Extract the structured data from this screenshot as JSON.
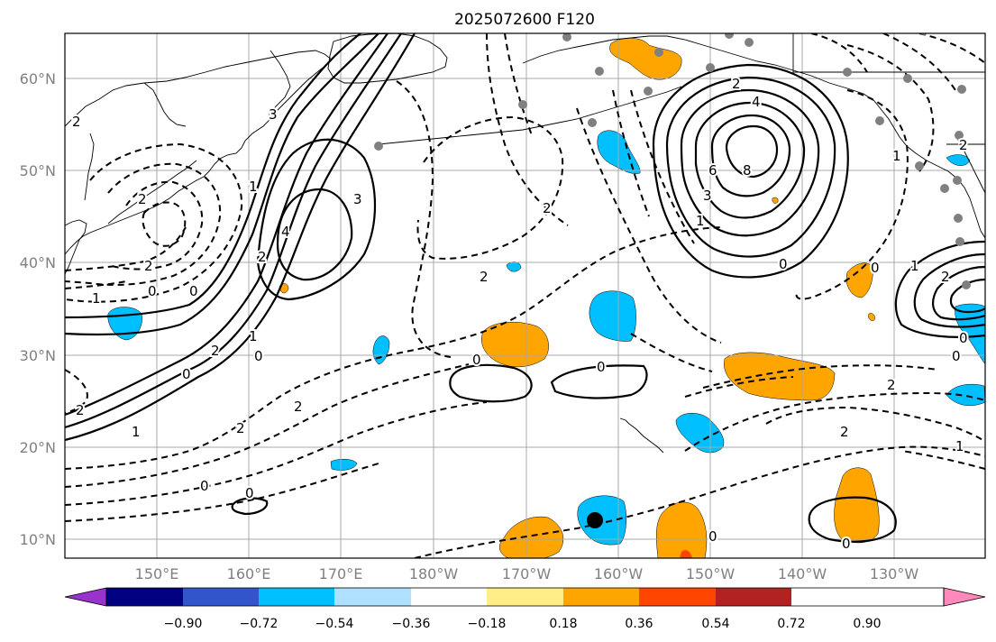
{
  "title": "2025072600 F120",
  "lat_labels": [
    "60°N",
    "50°N",
    "40°N",
    "30°N",
    "20°N",
    "10°N"
  ],
  "lon_labels": [
    "150°E",
    "160°E",
    "170°E",
    "180°W",
    "170°W",
    "160°W",
    "150°W",
    "140°W",
    "130°W"
  ],
  "contour_labels": [
    "2",
    "1",
    "0",
    "0",
    "2",
    "2",
    "1",
    "4",
    "3",
    "3",
    "2",
    "1",
    "0",
    "2",
    "1",
    "0",
    "2",
    "0",
    "2",
    "2",
    "0",
    "0",
    "2",
    "4",
    "6",
    "8",
    "3",
    "1",
    "0",
    "0",
    "2",
    "2",
    "1",
    "0",
    "0",
    "2",
    "0",
    "2",
    "1",
    "1",
    "2",
    "2",
    "0",
    "0"
  ],
  "colorbar": {
    "ticks": [
      "−0.90",
      "−0.72",
      "−0.54",
      "−0.36",
      "−0.18",
      "0.18",
      "0.36",
      "0.54",
      "0.72",
      "0.90"
    ],
    "colors": [
      "#9933cc",
      "#000080",
      "#3355cc",
      "#00bfff",
      "#b0e0ff",
      "#ffffff",
      "#ffee88",
      "#ffa500",
      "#ff4500",
      "#b22222",
      "#ff88bb"
    ]
  },
  "colors": {
    "blue_anomaly": "#00bfff",
    "orange_anomaly": "#ffa500",
    "red_anomaly": "#ff4500",
    "station_marker": "#808080"
  }
}
